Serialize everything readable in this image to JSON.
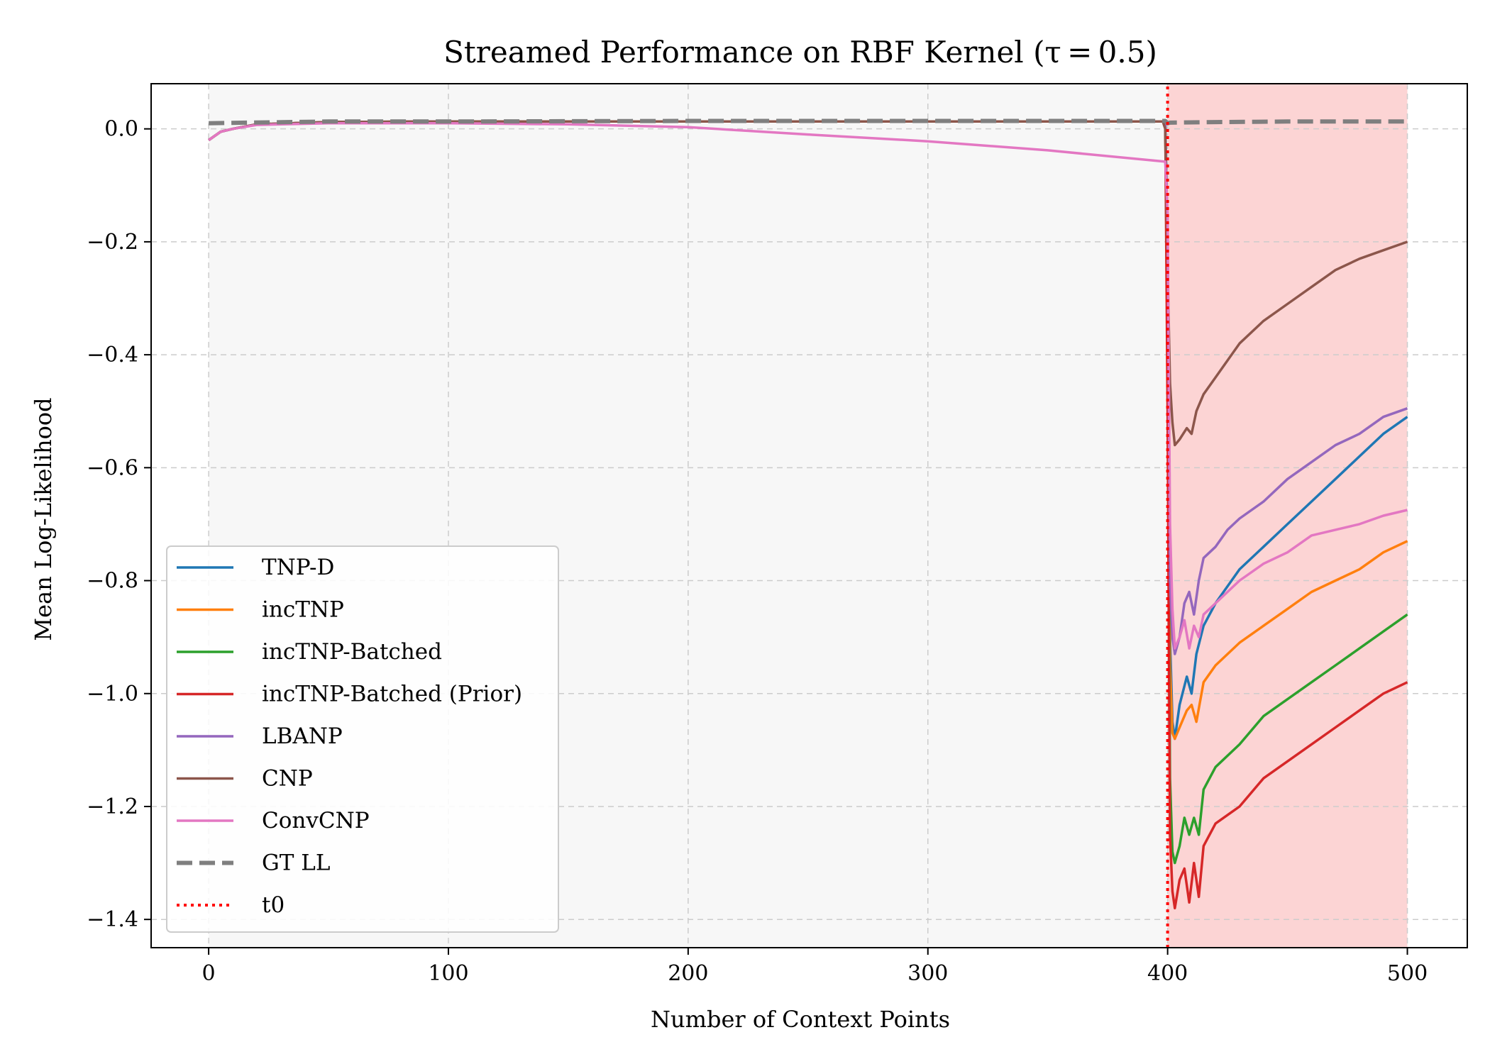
{
  "chart_data": {
    "type": "line",
    "title": "Streamed Performance on RBF Kernel (τ = 0.5)",
    "xlabel": "Number of Context Points",
    "ylabel": "Mean Log-Likelihood",
    "xlim": [
      -24,
      525
    ],
    "ylim": [
      -1.45,
      0.08
    ],
    "xticks": [
      0,
      100,
      200,
      300,
      400,
      500
    ],
    "yticks": [
      0.0,
      -0.2,
      -0.4,
      -0.6,
      -0.8,
      -1.0,
      -1.2,
      -1.4
    ],
    "ytick_labels": [
      "0.0",
      "−0.2",
      "−0.4",
      "−0.6",
      "−0.8",
      "−1.0",
      "−1.2",
      "−1.4"
    ],
    "xtick_labels": [
      "0",
      "100",
      "200",
      "300",
      "400",
      "500"
    ],
    "grid": true,
    "legend_position": "lower-left",
    "regions": [
      {
        "x": [
          0,
          400
        ],
        "color": "#f7f7f7"
      },
      {
        "x": [
          400,
          500
        ],
        "color": "#fcd4d4"
      }
    ],
    "series": [
      {
        "name": "TNP-D",
        "color": "#1f77b4",
        "style": "solid",
        "x": [
          0,
          5,
          10,
          20,
          50,
          100,
          200,
          300,
          399,
          400,
          401,
          402,
          403,
          405,
          408,
          410,
          412,
          415,
          420,
          425,
          430,
          440,
          450,
          460,
          470,
          480,
          490,
          500
        ],
        "y": [
          -0.02,
          -0.005,
          0.0,
          0.008,
          0.012,
          0.013,
          0.013,
          0.013,
          0.013,
          -0.2,
          -0.9,
          -1.05,
          -1.08,
          -1.02,
          -0.97,
          -1.0,
          -0.93,
          -0.88,
          -0.84,
          -0.81,
          -0.78,
          -0.74,
          -0.7,
          -0.66,
          -0.62,
          -0.58,
          -0.54,
          -0.51
        ]
      },
      {
        "name": "incTNP",
        "color": "#ff7f0e",
        "style": "solid",
        "x": [
          0,
          5,
          10,
          20,
          50,
          100,
          200,
          300,
          399,
          400,
          401,
          402,
          403,
          405,
          408,
          410,
          412,
          415,
          420,
          430,
          440,
          450,
          460,
          470,
          480,
          490,
          500
        ],
        "y": [
          -0.02,
          -0.005,
          0.0,
          0.008,
          0.012,
          0.013,
          0.013,
          0.013,
          0.013,
          -0.3,
          -0.95,
          -1.07,
          -1.08,
          -1.06,
          -1.03,
          -1.02,
          -1.05,
          -0.98,
          -0.95,
          -0.91,
          -0.88,
          -0.85,
          -0.82,
          -0.8,
          -0.78,
          -0.75,
          -0.73
        ]
      },
      {
        "name": "incTNP-Batched",
        "color": "#2ca02c",
        "style": "solid",
        "x": [
          0,
          5,
          10,
          20,
          50,
          100,
          200,
          300,
          399,
          400,
          401,
          402,
          403,
          405,
          407,
          409,
          411,
          413,
          415,
          420,
          430,
          440,
          450,
          460,
          470,
          480,
          490,
          500
        ],
        "y": [
          -0.02,
          -0.005,
          0.0,
          0.008,
          0.012,
          0.013,
          0.013,
          0.013,
          0.013,
          -0.4,
          -1.15,
          -1.28,
          -1.3,
          -1.27,
          -1.22,
          -1.25,
          -1.22,
          -1.25,
          -1.17,
          -1.13,
          -1.09,
          -1.04,
          -1.01,
          -0.98,
          -0.95,
          -0.92,
          -0.89,
          -0.86
        ]
      },
      {
        "name": "incTNP-Batched (Prior)",
        "color": "#d62728",
        "style": "solid",
        "x": [
          0,
          5,
          10,
          20,
          50,
          100,
          200,
          300,
          399,
          400,
          401,
          402,
          403,
          405,
          407,
          409,
          411,
          413,
          415,
          420,
          430,
          440,
          450,
          460,
          470,
          480,
          490,
          500
        ],
        "y": [
          -0.02,
          -0.005,
          0.0,
          0.008,
          0.012,
          0.013,
          0.013,
          0.013,
          0.013,
          -0.5,
          -1.25,
          -1.35,
          -1.38,
          -1.33,
          -1.31,
          -1.37,
          -1.3,
          -1.36,
          -1.27,
          -1.23,
          -1.2,
          -1.15,
          -1.12,
          -1.09,
          -1.06,
          -1.03,
          -1.0,
          -0.98
        ]
      },
      {
        "name": "LBANP",
        "color": "#9467bd",
        "style": "solid",
        "x": [
          0,
          5,
          10,
          20,
          50,
          100,
          200,
          300,
          399,
          400,
          401,
          402,
          403,
          405,
          407,
          409,
          411,
          413,
          415,
          420,
          425,
          430,
          440,
          450,
          460,
          470,
          480,
          490,
          500
        ],
        "y": [
          -0.02,
          -0.005,
          0.0,
          0.008,
          0.012,
          0.013,
          0.013,
          0.013,
          0.013,
          -0.2,
          -0.8,
          -0.9,
          -0.93,
          -0.9,
          -0.84,
          -0.82,
          -0.86,
          -0.8,
          -0.76,
          -0.74,
          -0.71,
          -0.69,
          -0.66,
          -0.62,
          -0.59,
          -0.56,
          -0.54,
          -0.51,
          -0.495
        ]
      },
      {
        "name": "CNP",
        "color": "#8c564b",
        "style": "solid",
        "x": [
          0,
          5,
          10,
          20,
          50,
          100,
          200,
          300,
          398,
          399,
          400,
          401,
          402,
          403,
          405,
          408,
          410,
          412,
          415,
          420,
          425,
          430,
          440,
          450,
          460,
          470,
          480,
          490,
          500
        ],
        "y": [
          -0.02,
          -0.005,
          0.0,
          0.008,
          0.012,
          0.013,
          0.013,
          0.013,
          0.013,
          0.0,
          -0.25,
          -0.45,
          -0.52,
          -0.56,
          -0.55,
          -0.53,
          -0.54,
          -0.5,
          -0.47,
          -0.44,
          -0.41,
          -0.38,
          -0.34,
          -0.31,
          -0.28,
          -0.25,
          -0.23,
          -0.215,
          -0.2
        ]
      },
      {
        "name": "ConvCNP",
        "color": "#e377c2",
        "style": "solid",
        "x": [
          0,
          5,
          10,
          20,
          50,
          100,
          150,
          200,
          250,
          300,
          350,
          399,
          400,
          401,
          402,
          403,
          405,
          407,
          409,
          411,
          413,
          415,
          420,
          430,
          440,
          450,
          460,
          470,
          480,
          490,
          500
        ],
        "y": [
          -0.02,
          -0.005,
          0.0,
          0.007,
          0.01,
          0.01,
          0.008,
          0.003,
          -0.01,
          -0.022,
          -0.038,
          -0.058,
          -0.15,
          -0.7,
          -0.85,
          -0.92,
          -0.9,
          -0.87,
          -0.92,
          -0.88,
          -0.9,
          -0.86,
          -0.84,
          -0.8,
          -0.77,
          -0.75,
          -0.72,
          -0.71,
          -0.7,
          -0.685,
          -0.675
        ]
      },
      {
        "name": "GT LL",
        "color": "#7f7f7f",
        "style": "dashed",
        "x": [
          0,
          50,
          100,
          200,
          300,
          399,
          400,
          401,
          420,
          450,
          500
        ],
        "y": [
          0.01,
          0.013,
          0.013,
          0.014,
          0.014,
          0.014,
          0.01,
          0.011,
          0.012,
          0.013,
          0.013
        ]
      },
      {
        "name": "t0",
        "color": "#ff0000",
        "style": "dotted",
        "vertical": true,
        "x": [
          400,
          400
        ],
        "y": [
          -1.45,
          0.08
        ]
      }
    ]
  }
}
